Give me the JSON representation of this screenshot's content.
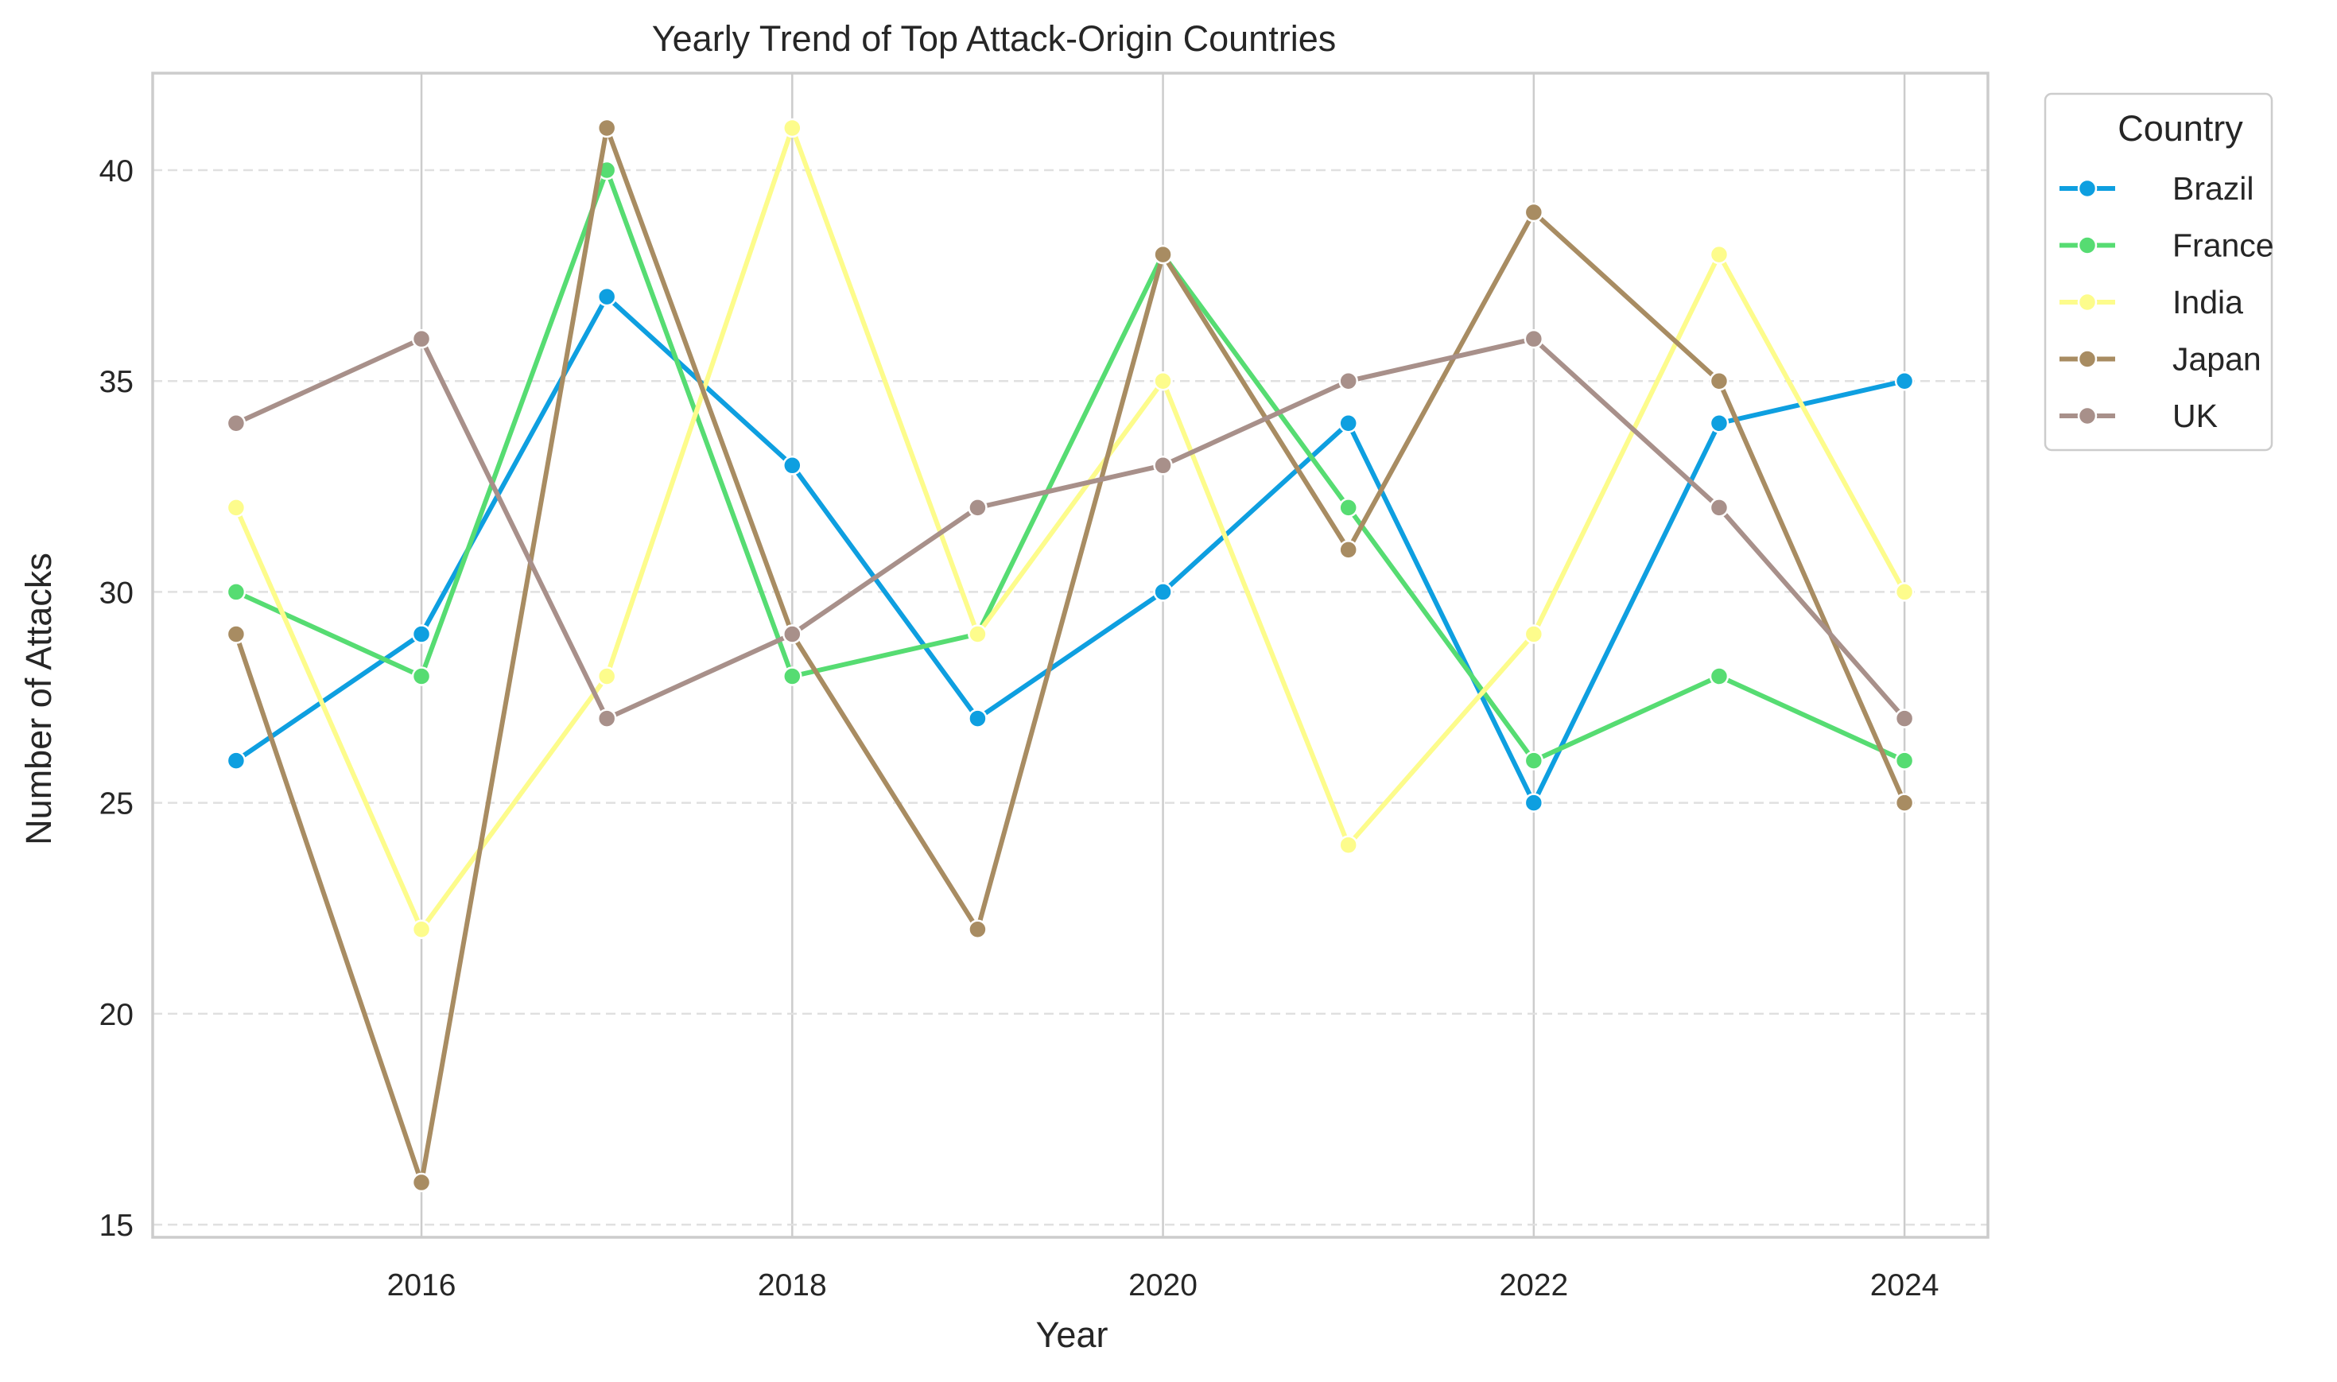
{
  "chart_data": {
    "type": "line",
    "title": "Yearly Trend of Top Attack-Origin Countries",
    "xlabel": "Year",
    "ylabel": "Number of Attacks",
    "x": [
      2015,
      2016,
      2017,
      2018,
      2019,
      2020,
      2021,
      2022,
      2023,
      2024
    ],
    "xlim": [
      2014.55,
      2024.45
    ],
    "ylim": [
      14.7,
      42.3
    ],
    "xticks": [
      2016,
      2018,
      2020,
      2022,
      2024
    ],
    "yticks": [
      15,
      20,
      25,
      30,
      35,
      40
    ],
    "grid": true,
    "legend": {
      "title": "Country",
      "placement": "outside-top-right"
    },
    "series": [
      {
        "name": "Brazil",
        "color": "#0e9fe0",
        "values": [
          26,
          29,
          37,
          33,
          27,
          30,
          34,
          25,
          34,
          35
        ]
      },
      {
        "name": "France",
        "color": "#56dc72",
        "values": [
          30,
          28,
          40,
          28,
          29,
          38,
          32,
          26,
          28,
          26
        ]
      },
      {
        "name": "India",
        "color": "#fdfc8c",
        "values": [
          32,
          22,
          28,
          41,
          29,
          35,
          24,
          29,
          38,
          30
        ]
      },
      {
        "name": "Japan",
        "color": "#a88c62",
        "values": [
          29,
          16,
          41,
          29,
          22,
          38,
          31,
          39,
          35,
          25
        ]
      },
      {
        "name": "UK",
        "color": "#a8908a",
        "values": [
          34,
          36,
          27,
          29,
          32,
          33,
          35,
          36,
          32,
          27
        ]
      }
    ]
  }
}
